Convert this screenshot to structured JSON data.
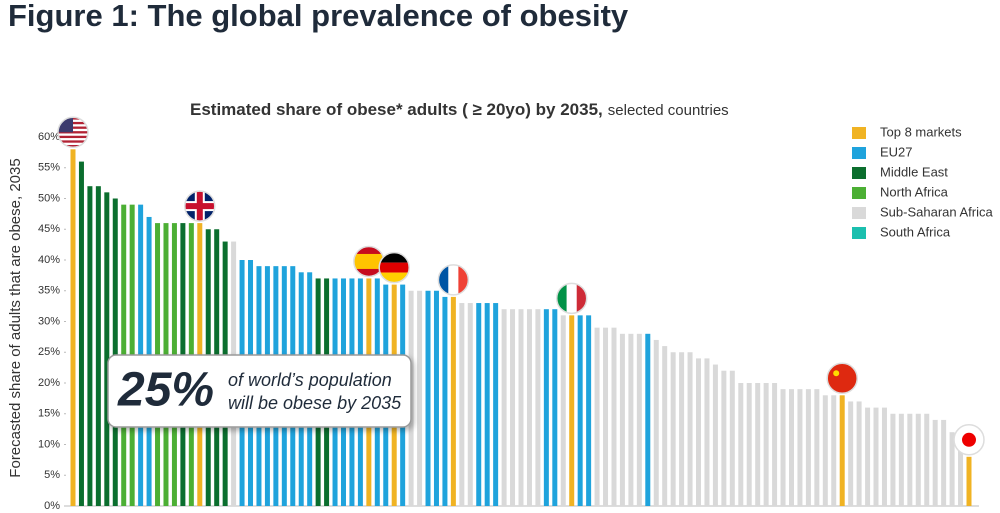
{
  "chart_data": {
    "type": "bar",
    "figure_title": "Figure 1: The global prevalence of obesity",
    "title": "Estimated share of obese* adults ( ≥ 20yo) by 2035,",
    "subtitle": "selected countries",
    "y_label": "Forecasted share of adults that are obese, 2035",
    "callout": {
      "figure": "25%",
      "line1": "of world’s population",
      "line2": "will be obese by 2035"
    },
    "legend": [
      {
        "name": "Top 8 markets",
        "color": "#f0b323"
      },
      {
        "name": "EU27",
        "color": "#1fa3dc"
      },
      {
        "name": "Middle East",
        "color": "#0b6e2e"
      },
      {
        "name": "North Africa",
        "color": "#4caf34"
      },
      {
        "name": "Sub-Saharan Africa",
        "color": "#d9d9d9"
      },
      {
        "name": "South Africa",
        "color": "#1bbfae"
      }
    ],
    "values": [
      58,
      56,
      52,
      52,
      51,
      50,
      49,
      49,
      49,
      47,
      46,
      46,
      46,
      46,
      46,
      46,
      45,
      45,
      43,
      43,
      40,
      40,
      39,
      39,
      39,
      39,
      39,
      38,
      38,
      37,
      37,
      37,
      37,
      37,
      37,
      37,
      37,
      36,
      36,
      36,
      35,
      35,
      35,
      35,
      34,
      34,
      33,
      33,
      33,
      33,
      33,
      32,
      32,
      32,
      32,
      32,
      32,
      32,
      31,
      31,
      31,
      31,
      29,
      29,
      29,
      28,
      28,
      28,
      28,
      27,
      26,
      25,
      25,
      25,
      24,
      24,
      23,
      22,
      22,
      20,
      20,
      20,
      20,
      20,
      19,
      19,
      19,
      19,
      19,
      18,
      18,
      18,
      17,
      17,
      16,
      16,
      16,
      15,
      15,
      15,
      15,
      15,
      14,
      14,
      12,
      12,
      8
    ],
    "colors": [
      "#f0b323",
      "#0b6e2e",
      "#0b6e2e",
      "#0b6e2e",
      "#0b6e2e",
      "#0b6e2e",
      "#4caf34",
      "#4caf34",
      "#1fa3dc",
      "#1fa3dc",
      "#4caf34",
      "#4caf34",
      "#4caf34",
      "#0b6e2e",
      "#4caf34",
      "#f0b323",
      "#0b6e2e",
      "#0b6e2e",
      "#0b6e2e",
      "#d9d9d9",
      "#1fa3dc",
      "#1fa3dc",
      "#1fa3dc",
      "#1fa3dc",
      "#1fa3dc",
      "#1fa3dc",
      "#1fa3dc",
      "#1fa3dc",
      "#1fa3dc",
      "#0b6e2e",
      "#0b6e2e",
      "#1fa3dc",
      "#1fa3dc",
      "#1fa3dc",
      "#1fa3dc",
      "#f0b323",
      "#1fa3dc",
      "#1fa3dc",
      "#f0b323",
      "#1fa3dc",
      "#d9d9d9",
      "#d9d9d9",
      "#1fa3dc",
      "#1fa3dc",
      "#1fa3dc",
      "#f0b323",
      "#d9d9d9",
      "#d9d9d9",
      "#1fa3dc",
      "#1fa3dc",
      "#1fa3dc",
      "#d9d9d9",
      "#d9d9d9",
      "#d9d9d9",
      "#d9d9d9",
      "#d9d9d9",
      "#1fa3dc",
      "#1fa3dc",
      "#d9d9d9",
      "#f0b323",
      "#1fa3dc",
      "#1fa3dc",
      "#d9d9d9",
      "#d9d9d9",
      "#d9d9d9",
      "#d9d9d9",
      "#d9d9d9",
      "#d9d9d9",
      "#1fa3dc",
      "#d9d9d9",
      "#d9d9d9",
      "#d9d9d9",
      "#d9d9d9",
      "#d9d9d9",
      "#d9d9d9",
      "#d9d9d9",
      "#d9d9d9",
      "#d9d9d9",
      "#d9d9d9",
      "#d9d9d9",
      "#d9d9d9",
      "#d9d9d9",
      "#d9d9d9",
      "#d9d9d9",
      "#d9d9d9",
      "#d9d9d9",
      "#d9d9d9",
      "#d9d9d9",
      "#d9d9d9",
      "#d9d9d9",
      "#d9d9d9",
      "#f0b323",
      "#d9d9d9",
      "#d9d9d9",
      "#d9d9d9",
      "#d9d9d9",
      "#d9d9d9",
      "#d9d9d9",
      "#d9d9d9",
      "#d9d9d9",
      "#d9d9d9",
      "#d9d9d9",
      "#d9d9d9",
      "#d9d9d9",
      "#d9d9d9",
      "#d9d9d9",
      "#f0b323"
    ],
    "ylim": [
      0,
      60
    ],
    "yticks": [
      {
        "value": 0,
        "label": "0%"
      },
      {
        "value": 5,
        "label": "5%"
      },
      {
        "value": 10,
        "label": "10%"
      },
      {
        "value": 15,
        "label": "15%"
      },
      {
        "value": 20,
        "label": "20%"
      },
      {
        "value": 25,
        "label": "25%"
      },
      {
        "value": 30,
        "label": "30%"
      },
      {
        "value": 35,
        "label": "35%"
      },
      {
        "value": 40,
        "label": "40%"
      },
      {
        "value": 45,
        "label": "45%"
      },
      {
        "value": 50,
        "label": "50%"
      },
      {
        "value": 55,
        "label": "55%"
      },
      {
        "value": 60,
        "label": "60%"
      }
    ],
    "grid": false
  }
}
